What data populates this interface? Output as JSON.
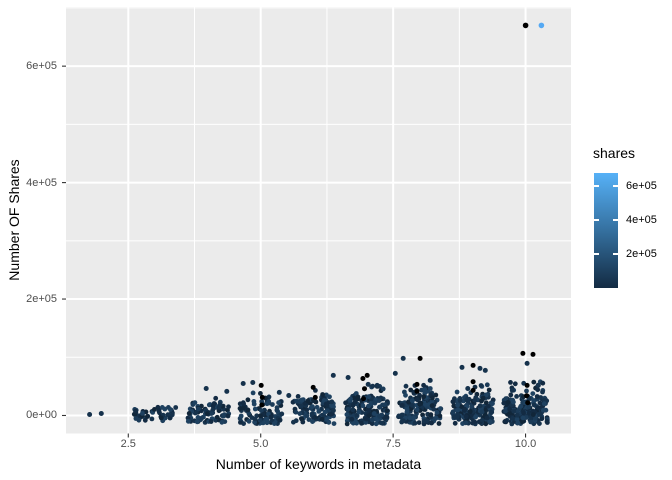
{
  "figure": {
    "background": "#FFFFFF"
  },
  "axis": {
    "tick_color": "#333333",
    "tick_label_color": "#4D4D4D",
    "title_color": "#000000"
  },
  "chart_data": {
    "type": "scatter",
    "title": "",
    "xlabel": "Number of keywords in metadata",
    "ylabel": "Number OF Shares",
    "panel_bg": "#EBEBEB",
    "grid_color": "#FFFFFF",
    "xlim": [
      1.324,
      10.858
    ],
    "ylim": [
      -30950,
      701600
    ],
    "x_ticks": [
      {
        "v": 2.5,
        "label": "2.5"
      },
      {
        "v": 5.0,
        "label": "5.0"
      },
      {
        "v": 7.5,
        "label": "7.5"
      },
      {
        "v": 10.0,
        "label": "10.0"
      }
    ],
    "x_minor": [
      3.75,
      6.25,
      8.75
    ],
    "y_ticks": [
      {
        "v": 0,
        "label": "0e+00"
      },
      {
        "v": 200000,
        "label": "2e+05"
      },
      {
        "v": 400000,
        "label": "4e+05"
      },
      {
        "v": 600000,
        "label": "6e+05"
      }
    ],
    "y_minor": [
      100000,
      300000,
      500000,
      700000
    ],
    "point_radius": 2.4,
    "point_palette": [
      "#16324C",
      "#132B43",
      "#1B3B58",
      "#112639",
      "#1E4160"
    ],
    "seed": 42,
    "clusters": [
      {
        "x": 3,
        "count": 50,
        "jitter": 0.4,
        "base": [
          -9000,
          14000
        ],
        "tail_frac": 0.06,
        "tail_max": 17000
      },
      {
        "x": 4,
        "count": 75,
        "jitter": 0.4,
        "base": [
          -12000,
          20000
        ],
        "tail_frac": 0.12,
        "tail_max": 35000
      },
      {
        "x": 5,
        "count": 95,
        "jitter": 0.4,
        "base": [
          -14000,
          25000
        ],
        "tail_frac": 0.14,
        "tail_max": 42000
      },
      {
        "x": 6,
        "count": 115,
        "jitter": 0.4,
        "base": [
          -14000,
          26000
        ],
        "tail_frac": 0.15,
        "tail_max": 44000
      },
      {
        "x": 7,
        "count": 170,
        "jitter": 0.4,
        "base": [
          -15000,
          28000
        ],
        "tail_frac": 0.16,
        "tail_max": 52000
      },
      {
        "x": 8,
        "count": 160,
        "jitter": 0.4,
        "base": [
          -15000,
          28000
        ],
        "tail_frac": 0.16,
        "tail_max": 52000
      },
      {
        "x": 9,
        "count": 170,
        "jitter": 0.4,
        "base": [
          -15000,
          29000
        ],
        "tail_frac": 0.16,
        "tail_max": 56000
      },
      {
        "x": 10,
        "count": 190,
        "jitter": 0.42,
        "base": [
          -15000,
          30000
        ],
        "tail_frac": 0.16,
        "tail_max": 58000
      }
    ],
    "feature_points": [
      {
        "x": 1.77,
        "y": 1700
      },
      {
        "x": 1.99,
        "y": 3400
      },
      {
        "x": 3.97,
        "y": 46400
      },
      {
        "x": 4.36,
        "y": 41300
      },
      {
        "x": 4.67,
        "y": 55000
      },
      {
        "x": 4.85,
        "y": 56700
      },
      {
        "x": 5.01,
        "y": 51600,
        "c": "#000000"
      },
      {
        "x": 5.03,
        "y": 31000,
        "c": "#000000"
      },
      {
        "x": 5.02,
        "y": 18000,
        "c": "#000000"
      },
      {
        "x": 5.35,
        "y": 39600
      },
      {
        "x": 5.53,
        "y": 34400
      },
      {
        "x": 5.99,
        "y": 48200,
        "c": "#000000"
      },
      {
        "x": 6.03,
        "y": 31000,
        "c": "#000000"
      },
      {
        "x": 6.37,
        "y": 68800
      },
      {
        "x": 6.65,
        "y": 65300
      },
      {
        "x": 7.01,
        "y": 68800,
        "c": "#000000"
      },
      {
        "x": 6.93,
        "y": 63600,
        "c": "#000000"
      },
      {
        "x": 6.96,
        "y": 46000,
        "c": "#000000"
      },
      {
        "x": 6.94,
        "y": 29000,
        "c": "#000000"
      },
      {
        "x": 7.03,
        "y": 53300
      },
      {
        "x": 7.2,
        "y": 51600
      },
      {
        "x": 7.54,
        "y": 72200
      },
      {
        "x": 7.69,
        "y": 98000
      },
      {
        "x": 8.01,
        "y": 98000,
        "c": "#000000"
      },
      {
        "x": 7.95,
        "y": 53300,
        "c": "#000000"
      },
      {
        "x": 7.95,
        "y": 41300,
        "c": "#000000"
      },
      {
        "x": 8.2,
        "y": 60200
      },
      {
        "x": 8.8,
        "y": 82500
      },
      {
        "x": 9.01,
        "y": 86000,
        "c": "#000000"
      },
      {
        "x": 9.01,
        "y": 58000,
        "c": "#000000"
      },
      {
        "x": 9.01,
        "y": 43000,
        "c": "#000000"
      },
      {
        "x": 9.14,
        "y": 80800
      },
      {
        "x": 9.24,
        "y": 77400
      },
      {
        "x": 8.91,
        "y": 46400
      },
      {
        "x": 9.95,
        "y": 106600,
        "c": "#000000"
      },
      {
        "x": 10.14,
        "y": 104900,
        "c": "#000000"
      },
      {
        "x": 10.03,
        "y": 89400
      },
      {
        "x": 10.03,
        "y": 51600,
        "c": "#000000"
      },
      {
        "x": 10.02,
        "y": 34000,
        "c": "#000000"
      },
      {
        "x": 10.04,
        "y": 22000,
        "c": "#000000"
      },
      {
        "x": 9.75,
        "y": 43000
      },
      {
        "x": 10.24,
        "y": 51600
      }
    ],
    "outliers": [
      {
        "x": 10.0,
        "y": 670000,
        "color": "#000000"
      },
      {
        "x": 10.3,
        "y": 670000,
        "color": "#55A9F3"
      }
    ]
  },
  "legend": {
    "title": "shares",
    "gradient_high": "#56B1F7",
    "gradient_mid": "#35709F",
    "gradient_low": "#132B43",
    "domain": [
      0,
      675000
    ],
    "ticks": [
      {
        "v": 200000,
        "label": "2e+05"
      },
      {
        "v": 400000,
        "label": "4e+05"
      },
      {
        "v": 600000,
        "label": "6e+05"
      }
    ]
  }
}
